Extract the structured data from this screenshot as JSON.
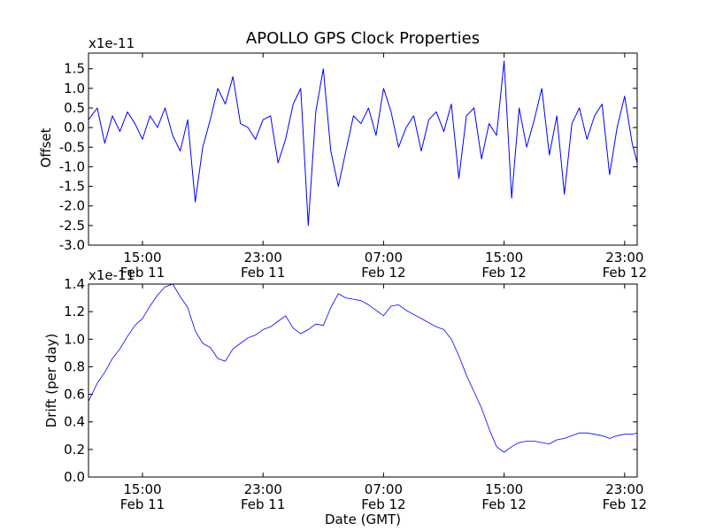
{
  "chart_data": [
    {
      "type": "line",
      "title": "APOLLO GPS Clock Properties",
      "ylabel": "Offset",
      "xlabel": "",
      "y_multiplier": "x1e-11",
      "ylim": [
        -3.0,
        1.9
      ],
      "yticks": [
        {
          "value": -3.0,
          "label": "-3.0"
        },
        {
          "value": -2.5,
          "label": "-2.5"
        },
        {
          "value": -2.0,
          "label": "-2.0"
        },
        {
          "value": -1.5,
          "label": "-1.5"
        },
        {
          "value": -1.0,
          "label": "-1.0"
        },
        {
          "value": -0.5,
          "label": "-0.5"
        },
        {
          "value": 0.0,
          "label": "0.0"
        },
        {
          "value": 0.5,
          "label": "0.5"
        },
        {
          "value": 1.0,
          "label": "1.0"
        },
        {
          "value": 1.5,
          "label": "1.5"
        }
      ],
      "xlim": [
        "Feb 11 11:25",
        "Feb 12 23:50"
      ],
      "xticks": [
        {
          "value": "Feb 11 15:00",
          "time": "15:00",
          "date": "Feb 11"
        },
        {
          "value": "Feb 11 23:00",
          "time": "23:00",
          "date": "Feb 11"
        },
        {
          "value": "Feb 12 07:00",
          "time": "07:00",
          "date": "Feb 12"
        },
        {
          "value": "Feb 12 15:00",
          "time": "15:00",
          "date": "Feb 12"
        },
        {
          "value": "Feb 12 23:00",
          "time": "23:00",
          "date": "Feb 12"
        }
      ],
      "grid": false,
      "color": "#0000ff",
      "series": [
        {
          "x": [
            "Feb 11 11:25",
            "Feb 11 12:00",
            "Feb 11 12:30",
            "Feb 11 13:00",
            "Feb 11 13:30",
            "Feb 11 14:00",
            "Feb 11 14:30",
            "Feb 11 15:00",
            "Feb 11 15:30",
            "Feb 11 16:00",
            "Feb 11 16:30",
            "Feb 11 17:00",
            "Feb 11 17:30",
            "Feb 11 18:00",
            "Feb 11 18:30",
            "Feb 11 19:00",
            "Feb 11 19:30",
            "Feb 11 20:00",
            "Feb 11 20:30",
            "Feb 11 21:00",
            "Feb 11 21:30",
            "Feb 11 22:00",
            "Feb 11 22:30",
            "Feb 11 23:00",
            "Feb 11 23:30",
            "Feb 12 00:00",
            "Feb 12 00:30",
            "Feb 12 01:00",
            "Feb 12 01:30",
            "Feb 12 02:00",
            "Feb 12 02:30",
            "Feb 12 03:00",
            "Feb 12 03:30",
            "Feb 12 04:00",
            "Feb 12 04:30",
            "Feb 12 05:00",
            "Feb 12 05:30",
            "Feb 12 06:00",
            "Feb 12 06:30",
            "Feb 12 07:00",
            "Feb 12 07:30",
            "Feb 12 08:00",
            "Feb 12 08:30",
            "Feb 12 09:00",
            "Feb 12 09:30",
            "Feb 12 10:00",
            "Feb 12 10:30",
            "Feb 12 11:00",
            "Feb 12 11:30",
            "Feb 12 12:00",
            "Feb 12 12:30",
            "Feb 12 13:00",
            "Feb 12 13:30",
            "Feb 12 14:00",
            "Feb 12 14:30",
            "Feb 12 15:00",
            "Feb 12 15:30",
            "Feb 12 16:00",
            "Feb 12 16:30",
            "Feb 12 17:00",
            "Feb 12 17:30",
            "Feb 12 18:00",
            "Feb 12 18:30",
            "Feb 12 19:00",
            "Feb 12 19:30",
            "Feb 12 20:00",
            "Feb 12 20:30",
            "Feb 12 21:00",
            "Feb 12 21:30",
            "Feb 12 22:00",
            "Feb 12 22:30",
            "Feb 12 23:00",
            "Feb 12 23:30",
            "Feb 12 23:50"
          ],
          "values": [
            0.2,
            0.5,
            -0.4,
            0.3,
            -0.1,
            0.4,
            0.1,
            -0.3,
            0.3,
            0.0,
            0.5,
            -0.2,
            -0.6,
            0.2,
            -1.9,
            -0.5,
            0.2,
            1.0,
            0.6,
            1.3,
            0.1,
            0.0,
            -0.3,
            0.2,
            0.3,
            -0.9,
            -0.3,
            0.6,
            1.0,
            -2.5,
            0.4,
            1.5,
            -0.6,
            -1.5,
            -0.6,
            0.3,
            0.1,
            0.5,
            -0.2,
            1.0,
            0.4,
            -0.5,
            0.0,
            0.3,
            -0.6,
            0.2,
            0.4,
            -0.1,
            0.6,
            -1.3,
            0.3,
            0.5,
            -0.8,
            0.1,
            -0.2,
            1.7,
            -1.8,
            0.5,
            -0.5,
            0.2,
            1.0,
            -0.7,
            0.3,
            -1.7,
            0.1,
            0.5,
            -0.3,
            0.3,
            0.6,
            -1.2,
            0.0,
            0.8,
            -0.4,
            -0.9
          ]
        }
      ]
    },
    {
      "type": "line",
      "title": "",
      "ylabel": "Drift (per day)",
      "xlabel": "Date (GMT)",
      "y_multiplier": "x1e-11",
      "ylim": [
        0.0,
        1.4
      ],
      "yticks": [
        {
          "value": 0.0,
          "label": "0.0"
        },
        {
          "value": 0.2,
          "label": "0.2"
        },
        {
          "value": 0.4,
          "label": "0.4"
        },
        {
          "value": 0.6,
          "label": "0.6"
        },
        {
          "value": 0.8,
          "label": "0.8"
        },
        {
          "value": 1.0,
          "label": "1.0"
        },
        {
          "value": 1.2,
          "label": "1.2"
        },
        {
          "value": 1.4,
          "label": "1.4"
        }
      ],
      "xlim": [
        "Feb 11 11:25",
        "Feb 12 23:50"
      ],
      "xticks": [
        {
          "value": "Feb 11 15:00",
          "time": "15:00",
          "date": "Feb 11"
        },
        {
          "value": "Feb 11 23:00",
          "time": "23:00",
          "date": "Feb 11"
        },
        {
          "value": "Feb 12 07:00",
          "time": "07:00",
          "date": "Feb 12"
        },
        {
          "value": "Feb 12 15:00",
          "time": "15:00",
          "date": "Feb 12"
        },
        {
          "value": "Feb 12 23:00",
          "time": "23:00",
          "date": "Feb 12"
        }
      ],
      "grid": false,
      "color": "#0000ff",
      "series": [
        {
          "x": [
            "Feb 11 11:25",
            "Feb 11 12:00",
            "Feb 11 12:30",
            "Feb 11 13:00",
            "Feb 11 13:30",
            "Feb 11 14:00",
            "Feb 11 14:30",
            "Feb 11 15:00",
            "Feb 11 15:30",
            "Feb 11 16:00",
            "Feb 11 16:30",
            "Feb 11 17:00",
            "Feb 11 17:30",
            "Feb 11 18:00",
            "Feb 11 18:30",
            "Feb 11 19:00",
            "Feb 11 19:30",
            "Feb 11 20:00",
            "Feb 11 20:30",
            "Feb 11 21:00",
            "Feb 11 21:30",
            "Feb 11 22:00",
            "Feb 11 22:30",
            "Feb 11 23:00",
            "Feb 11 23:30",
            "Feb 12 00:00",
            "Feb 12 00:30",
            "Feb 12 01:00",
            "Feb 12 01:30",
            "Feb 12 02:00",
            "Feb 12 02:30",
            "Feb 12 03:00",
            "Feb 12 03:30",
            "Feb 12 04:00",
            "Feb 12 04:30",
            "Feb 12 05:00",
            "Feb 12 05:30",
            "Feb 12 06:00",
            "Feb 12 06:30",
            "Feb 12 07:00",
            "Feb 12 07:30",
            "Feb 12 08:00",
            "Feb 12 08:30",
            "Feb 12 09:00",
            "Feb 12 09:30",
            "Feb 12 10:00",
            "Feb 12 10:30",
            "Feb 12 11:00",
            "Feb 12 11:30",
            "Feb 12 12:00",
            "Feb 12 12:30",
            "Feb 12 13:00",
            "Feb 12 13:30",
            "Feb 12 14:00",
            "Feb 12 14:30",
            "Feb 12 15:00",
            "Feb 12 15:30",
            "Feb 12 16:00",
            "Feb 12 16:30",
            "Feb 12 17:00",
            "Feb 12 17:30",
            "Feb 12 18:00",
            "Feb 12 18:30",
            "Feb 12 19:00",
            "Feb 12 19:30",
            "Feb 12 20:00",
            "Feb 12 20:30",
            "Feb 12 21:00",
            "Feb 12 21:30",
            "Feb 12 22:00",
            "Feb 12 22:30",
            "Feb 12 23:00",
            "Feb 12 23:30",
            "Feb 12 23:50"
          ],
          "values": [
            0.55,
            0.68,
            0.76,
            0.86,
            0.93,
            1.02,
            1.1,
            1.15,
            1.24,
            1.32,
            1.38,
            1.4,
            1.31,
            1.23,
            1.06,
            0.97,
            0.94,
            0.86,
            0.84,
            0.93,
            0.97,
            1.01,
            1.03,
            1.07,
            1.09,
            1.13,
            1.17,
            1.08,
            1.04,
            1.07,
            1.11,
            1.1,
            1.23,
            1.33,
            1.3,
            1.29,
            1.28,
            1.25,
            1.21,
            1.17,
            1.24,
            1.25,
            1.21,
            1.18,
            1.15,
            1.12,
            1.09,
            1.07,
            1.0,
            0.88,
            0.74,
            0.62,
            0.5,
            0.35,
            0.22,
            0.18,
            0.22,
            0.25,
            0.26,
            0.26,
            0.25,
            0.24,
            0.27,
            0.28,
            0.3,
            0.32,
            0.32,
            0.31,
            0.3,
            0.28,
            0.3,
            0.31,
            0.31,
            0.32
          ]
        }
      ]
    }
  ]
}
